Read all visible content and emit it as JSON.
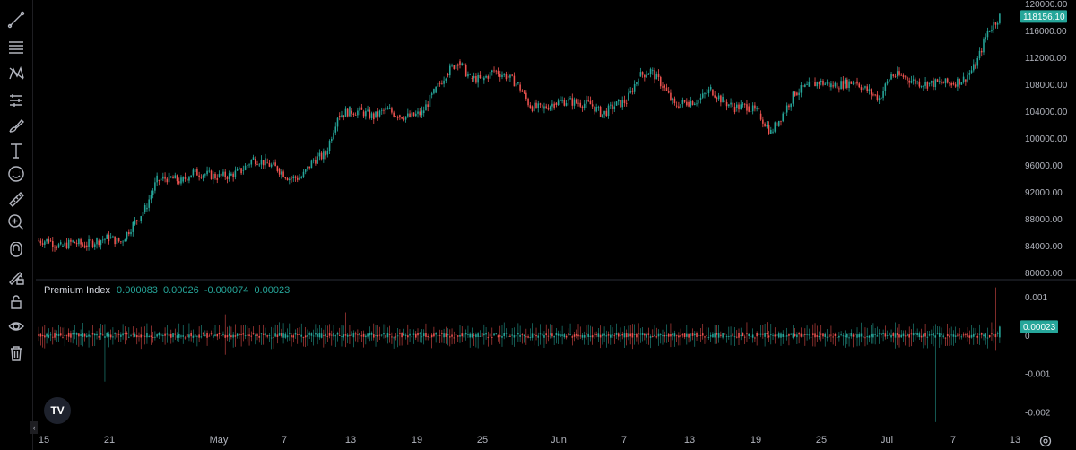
{
  "toolbar": {
    "tools": [
      "trend-line-icon",
      "fib-levels-icon",
      "pattern-icon",
      "measure-tools-icon",
      "brush-icon",
      "text-icon",
      "emoji-icon",
      "ruler-icon",
      "zoom-in-icon",
      "magnet-icon",
      "lock-drawing-icon",
      "lock-icon",
      "eye-icon",
      "trash-icon"
    ]
  },
  "colors": {
    "up": "#26a69a",
    "down": "#ef5350",
    "background": "#000000",
    "grid": "#1e1e22",
    "text": "#b2b5be"
  },
  "indicator": {
    "name": "Premium Index",
    "values": [
      "0.000083",
      "0.00026",
      "-0.000074",
      "0.00023"
    ]
  },
  "logo_text": "TV",
  "chart_data": [
    {
      "type": "candlestick",
      "title": "",
      "y_ticks": [
        "120000.00",
        "116000.00",
        "112000.00",
        "108000.00",
        "104000.00",
        "100000.00",
        "96000.00",
        "92000.00",
        "88000.00",
        "84000.00",
        "80000.00"
      ],
      "last_price_label": "118156.10",
      "ylim": [
        79000,
        120600
      ],
      "x_ticks": [
        "15",
        "21",
        "May",
        "7",
        "13",
        "19",
        "25",
        "Jun",
        "7",
        "13",
        "19",
        "25",
        "Jul",
        "7",
        "13"
      ],
      "grid": false,
      "daily_close": [
        [
          0,
          84800
        ],
        [
          1,
          83900
        ],
        [
          2,
          84600
        ],
        [
          3,
          84100
        ],
        [
          4,
          84800
        ],
        [
          5,
          85200
        ],
        [
          6,
          84600
        ],
        [
          7,
          87200
        ],
        [
          8,
          89500
        ],
        [
          9,
          93800
        ],
        [
          10,
          94200
        ],
        [
          11,
          93600
        ],
        [
          12,
          95000
        ],
        [
          13,
          94700
        ],
        [
          14,
          94300
        ],
        [
          15,
          94500
        ],
        [
          16,
          95200
        ],
        [
          17,
          97000
        ],
        [
          18,
          96400
        ],
        [
          19,
          95500
        ],
        [
          20,
          94100
        ],
        [
          21,
          94200
        ],
        [
          22,
          96800
        ],
        [
          23,
          97600
        ],
        [
          24,
          103400
        ],
        [
          25,
          104100
        ],
        [
          26,
          104000
        ],
        [
          27,
          103200
        ],
        [
          28,
          104300
        ],
        [
          29,
          103500
        ],
        [
          30,
          103200
        ],
        [
          31,
          103800
        ],
        [
          32,
          106800
        ],
        [
          33,
          109600
        ],
        [
          34,
          111500
        ],
        [
          35,
          109000
        ],
        [
          36,
          108700
        ],
        [
          37,
          110100
        ],
        [
          38,
          109300
        ],
        [
          39,
          108000
        ],
        [
          40,
          104800
        ],
        [
          41,
          104400
        ],
        [
          42,
          105300
        ],
        [
          43,
          105600
        ],
        [
          44,
          105300
        ],
        [
          45,
          105100
        ],
        [
          46,
          103600
        ],
        [
          47,
          104900
        ],
        [
          48,
          105600
        ],
        [
          49,
          109200
        ],
        [
          50,
          110100
        ],
        [
          51,
          107900
        ],
        [
          52,
          104900
        ],
        [
          53,
          105400
        ],
        [
          54,
          105700
        ],
        [
          55,
          107300
        ],
        [
          56,
          105600
        ],
        [
          57,
          104600
        ],
        [
          58,
          104800
        ],
        [
          59,
          103700
        ],
        [
          60,
          100900
        ],
        [
          61,
          103700
        ],
        [
          62,
          106800
        ],
        [
          63,
          107700
        ],
        [
          64,
          108400
        ],
        [
          65,
          107900
        ],
        [
          66,
          108100
        ],
        [
          67,
          108500
        ],
        [
          68,
          107100
        ],
        [
          69,
          106000
        ],
        [
          70,
          109500
        ],
        [
          71,
          109200
        ],
        [
          72,
          108400
        ],
        [
          73,
          108100
        ],
        [
          74,
          108300
        ],
        [
          75,
          108200
        ],
        [
          76,
          108800
        ],
        [
          77,
          110800
        ],
        [
          78,
          115900
        ],
        [
          79,
          118156
        ]
      ]
    },
    {
      "type": "histogram",
      "name": "Premium Index",
      "y_ticks": [
        "0.001",
        "0",
        "-0.001",
        "-0.002"
      ],
      "last_value_label": "0.00023",
      "ylim": [
        -0.00237,
        0.00145
      ],
      "spikes": [
        {
          "day": 79,
          "high": 0.00125,
          "low": -0.0004
        },
        {
          "day": 74,
          "high": 0.0003,
          "low": -0.00225
        },
        {
          "day": 25,
          "high": 0.0006,
          "low": -0.0003
        },
        {
          "day": 15,
          "high": 0.00055,
          "low": -0.0005
        },
        {
          "day": 5,
          "high": 0.0003,
          "low": -0.0012
        }
      ]
    }
  ]
}
